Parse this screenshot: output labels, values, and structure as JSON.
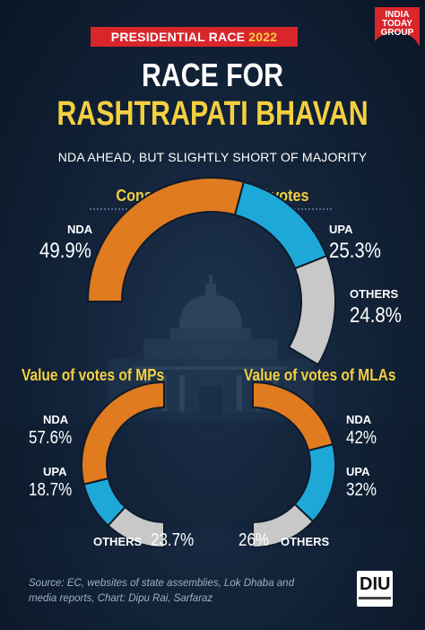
{
  "header": {
    "banner_text": "PRESIDENTIAL RACE",
    "banner_year": "2022",
    "logo_line1": "INDIA",
    "logo_line2": "TODAY",
    "logo_line3": "GROUP",
    "title_line1": "RACE FOR",
    "title_line2": "RASHTRAPATI BHAVAN",
    "subtitle": "NDA AHEAD, BUT SLIGHTLY SHORT OF MAJORITY"
  },
  "colors": {
    "nda": "#e07b1f",
    "upa": "#1ea8d8",
    "others": "#c8c8c8",
    "accent_yellow": "#f4d03f",
    "banner_red": "#d8262b"
  },
  "chart_data": [
    {
      "type": "pie",
      "style": "semi-donut",
      "title": "Consolidated value of votes",
      "slices": [
        {
          "name": "NDA",
          "value": 49.9,
          "label": "49.9%"
        },
        {
          "name": "UPA",
          "value": 25.3,
          "label": "25.3%"
        },
        {
          "name": "OTHERS",
          "value": 24.8,
          "label": "24.8%"
        }
      ]
    },
    {
      "type": "pie",
      "style": "half-donut-left",
      "title": "Value of votes of MPs",
      "slices": [
        {
          "name": "NDA",
          "value": 57.6,
          "label": "57.6%"
        },
        {
          "name": "UPA",
          "value": 18.7,
          "label": "18.7%"
        },
        {
          "name": "OTHERS",
          "value": 23.7,
          "label": "23.7%"
        }
      ]
    },
    {
      "type": "pie",
      "style": "half-donut-right",
      "title": "Value of votes of MLAs",
      "slices": [
        {
          "name": "NDA",
          "value": 42,
          "label": "42%"
        },
        {
          "name": "UPA",
          "value": 32,
          "label": "32%"
        },
        {
          "name": "OTHERS",
          "value": 26,
          "label": "26%"
        }
      ]
    }
  ],
  "footer": {
    "source": "Source: EC, websites of state assemblies, Lok Dhaba and media reports, Chart: Dipu Rai, Sarfaraz",
    "diu_logo": "DIU"
  }
}
